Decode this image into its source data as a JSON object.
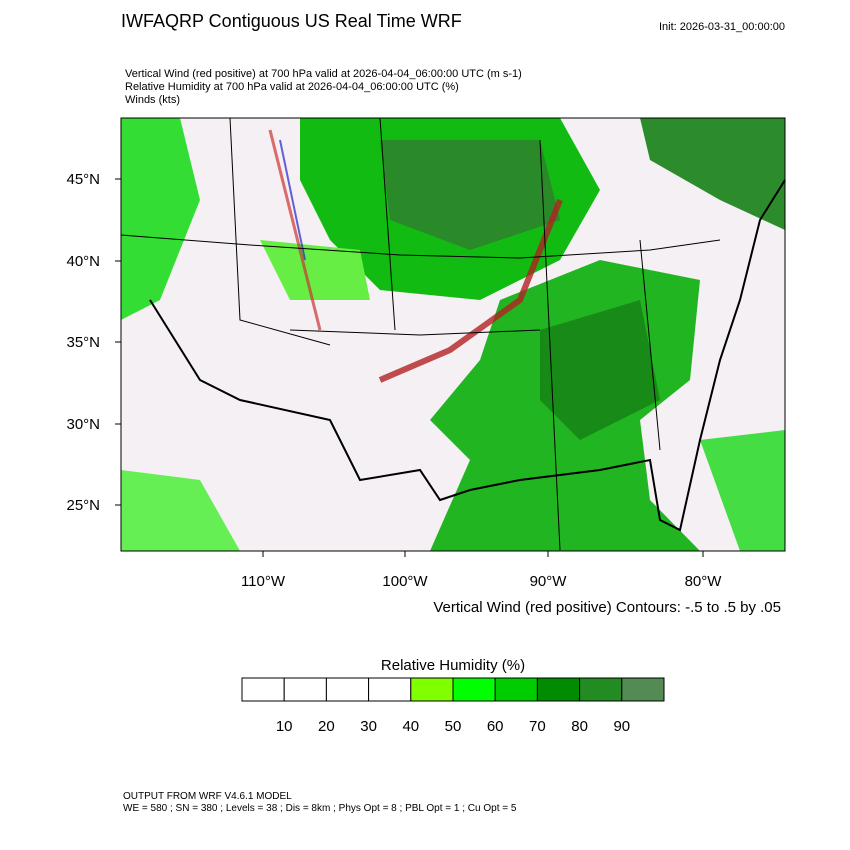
{
  "header": {
    "title": "IWFAQRP Contiguous US Real Time WRF",
    "init": "Init: 2026-03-31_00:00:00",
    "lines": [
      "Vertical Wind (red positive) at 700 hPa valid at 2026-04-04_06:00:00 UTC   (m s-1)",
      "Relative Humidity at 700 hPa valid at 2026-04-04_06:00:00 UTC   (%)",
      "Winds   (kts)"
    ]
  },
  "map": {
    "lat_labels": [
      "45°N",
      "40°N",
      "35°N",
      "30°N",
      "25°N"
    ],
    "lon_labels": [
      "110°W",
      "100°W",
      "90°W",
      "80°W"
    ],
    "contour_note": "Vertical Wind (red positive) Contours: -.5 to .5 by .05"
  },
  "colorbar": {
    "title": "Relative Humidity  (%)",
    "ticks": [
      10,
      20,
      30,
      40,
      50,
      60,
      70,
      80,
      90
    ],
    "colors": [
      "#ffffff",
      "#ffffff",
      "#ffffff",
      "#ffffff",
      "#7fff00",
      "#00ff00",
      "#00cd00",
      "#008b00",
      "#228b22",
      "#548b54"
    ]
  },
  "footer": {
    "lines": [
      "OUTPUT FROM WRF V4.6.1 MODEL",
      "WE = 580 ; SN = 380 ; Levels = 38 ; Dis = 8km ; Phys Opt = 8 ; PBL Opt = 1 ; Cu Opt = 5"
    ]
  }
}
